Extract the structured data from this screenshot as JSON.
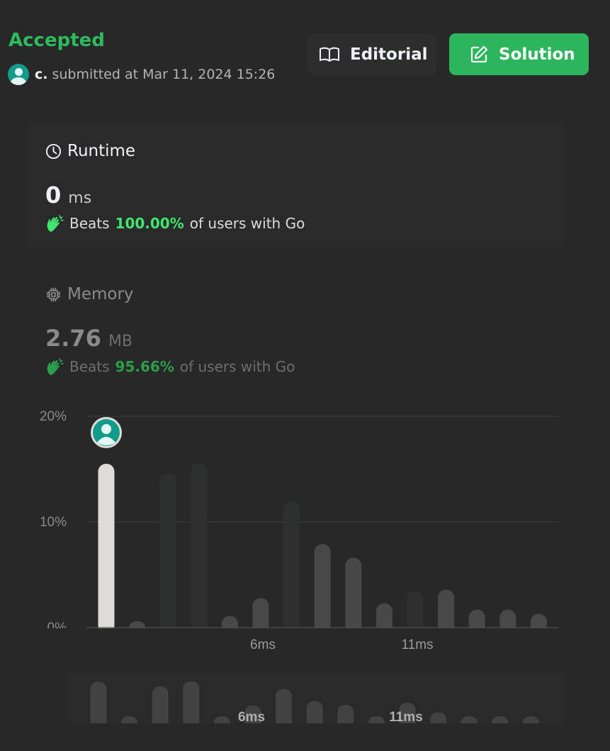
{
  "submission": {
    "status": "Accepted",
    "status_color": "#2cbb5d",
    "user_name": "c.",
    "submitted_text": "submitted at Mar 11, 2024 15:26"
  },
  "buttons": {
    "editorial_label": "Editorial",
    "editorial_icon": "book-icon",
    "solution_label": "Solution",
    "solution_icon": "edit-icon",
    "solution_color": "#2db55d"
  },
  "runtime": {
    "title": "Runtime",
    "icon": "clock-icon",
    "value": "0",
    "unit": "ms",
    "beats_label": "Beats",
    "beats_pct": "100.00%",
    "beats_suffix": "of users with Go"
  },
  "memory": {
    "title": "Memory",
    "icon": "chip-icon",
    "value": "2.76",
    "unit": "MB",
    "beats_label": "Beats",
    "beats_pct": "95.66%",
    "beats_suffix": "of users with Go"
  },
  "chart_data": {
    "type": "bar",
    "title": "",
    "xlabel": "",
    "ylabel": "",
    "ylim": [
      0,
      20
    ],
    "yticks": [
      "20%",
      "10%",
      "0%"
    ],
    "ytick_values": [
      20,
      10,
      0
    ],
    "xtick_labels": [
      {
        "label": "6ms",
        "index": 5
      },
      {
        "label": "11ms",
        "index": 10
      }
    ],
    "values": [
      15.5,
      0.6,
      14.6,
      15.6,
      1.1,
      2.8,
      12.0,
      7.9,
      6.6,
      2.3,
      3.5,
      3.6,
      1.7,
      1.7,
      1.3
    ],
    "faded": [
      false,
      false,
      true,
      true,
      false,
      false,
      true,
      false,
      false,
      false,
      true,
      false,
      false,
      false,
      false
    ],
    "highlight_index": 0,
    "bar_color": "#484848",
    "faded_color": "#2e2f2f",
    "highlight_color": "#dedcd8"
  },
  "overview": {
    "values": [
      14.6,
      2.0,
      13.0,
      14.8,
      2.0,
      6.0,
      12.0,
      7.6,
      6.2,
      2.0,
      7.0,
      3.5,
      2.0,
      2.0,
      2.0
    ],
    "xtick_labels": [
      {
        "label": "6ms",
        "index": 5
      },
      {
        "label": "11ms",
        "index": 10
      }
    ]
  }
}
